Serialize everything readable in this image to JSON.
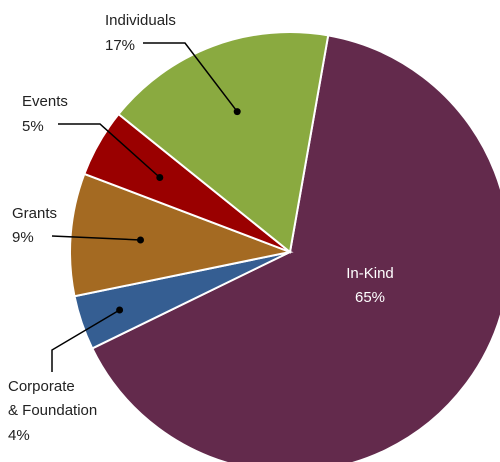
{
  "chart_data": {
    "type": "pie",
    "slices": [
      {
        "label": "In-Kind",
        "value": 65,
        "pct_label": "65%",
        "color": "#632a4c"
      },
      {
        "label": "Corporate",
        "label2": "& Foundation",
        "value": 4,
        "pct_label": "4%",
        "color": "#355e92"
      },
      {
        "label": "Grants",
        "value": 9,
        "pct_label": "9%",
        "color": "#a46a22"
      },
      {
        "label": "Events",
        "value": 5,
        "pct_label": "5%",
        "color": "#9a0000"
      },
      {
        "label": "Individuals",
        "value": 17,
        "pct_label": "17%",
        "color": "#8aaa40"
      }
    ],
    "slice_border_color": "#ffffff",
    "leader_line_color": "#000000"
  }
}
